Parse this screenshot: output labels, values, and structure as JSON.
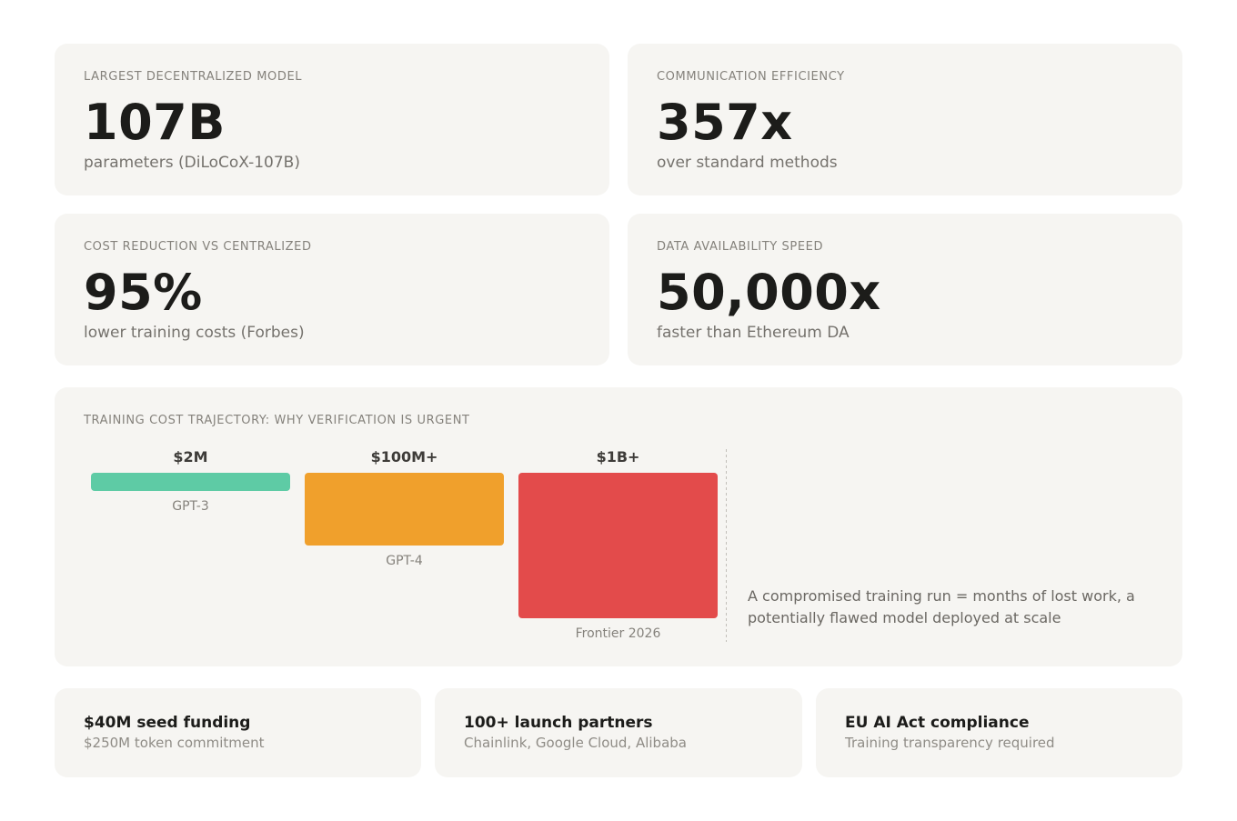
{
  "stats": [
    {
      "label": "LARGEST DECENTRALIZED MODEL",
      "value": "107B",
      "sub": "parameters (DiLoCoX-107B)"
    },
    {
      "label": "COMMUNICATION EFFICIENCY",
      "value": "357x",
      "sub": "over standard methods"
    },
    {
      "label": "COST REDUCTION VS CENTRALIZED",
      "value": "95%",
      "sub": "lower training costs (Forbes)"
    },
    {
      "label": "DATA AVAILABILITY SPEED",
      "value": "50,000x",
      "sub": "faster than Ethereum DA"
    }
  ],
  "chart_data": {
    "type": "bar",
    "title": "TRAINING COST TRAJECTORY: WHY VERIFICATION IS URGENT",
    "categories": [
      "GPT-3",
      "GPT-4",
      "Frontier 2026"
    ],
    "value_labels": [
      "$2M",
      "$100M+",
      "$1B+"
    ],
    "relative_heights": [
      0.125,
      0.5,
      1.0
    ],
    "colors": [
      "#5ecba5",
      "#f0a02c",
      "#e34b4b"
    ],
    "annotation": "A compromised training run = months of lost work, a potentially flawed model deployed at scale"
  },
  "highlights": [
    {
      "title": "$40M seed funding",
      "sub": "$250M token commitment"
    },
    {
      "title": "100+ launch partners",
      "sub": "Chainlink, Google Cloud, Alibaba"
    },
    {
      "title": "EU AI Act compliance",
      "sub": "Training transparency required"
    }
  ]
}
